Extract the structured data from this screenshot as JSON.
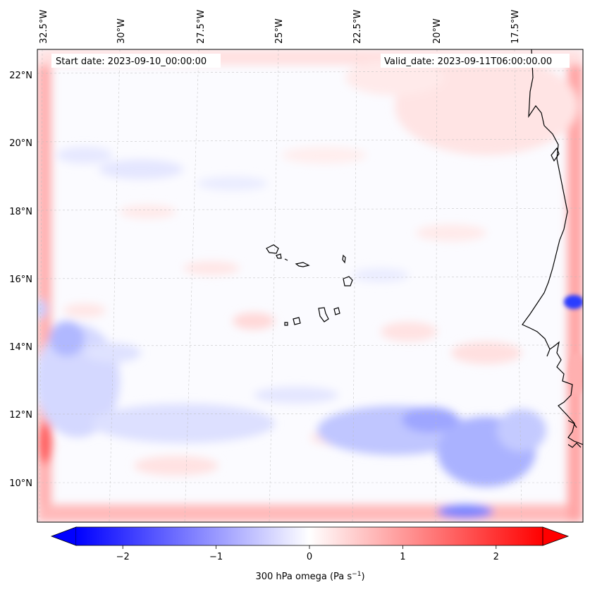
{
  "map": {
    "header": {
      "start_date": "Start date: 2023-09-10_00:00:00",
      "valid_date": "Valid_date: 2023-09-11T06:00:00.00"
    },
    "lon_ticks": [
      "32.5°W",
      "30°W",
      "27.5°W",
      "25°W",
      "22.5°W",
      "20°W",
      "17.5°W"
    ],
    "lat_ticks": [
      "22°N",
      "20°N",
      "18°N",
      "16°N",
      "14°N",
      "12°N",
      "10°N"
    ],
    "field_colors": {
      "negative": "#0000ff",
      "zero": "#ffffff",
      "positive": "#ff0000"
    }
  },
  "colorbar": {
    "ticks": [
      "−2",
      "−1",
      "0",
      "1",
      "2"
    ],
    "tick_values": [
      -2,
      -1,
      0,
      1,
      2
    ],
    "range": [
      -2.75,
      2.75
    ],
    "label": "300 hPa omega (Pa s",
    "label_sup": "−1",
    "label_end": ")"
  }
}
